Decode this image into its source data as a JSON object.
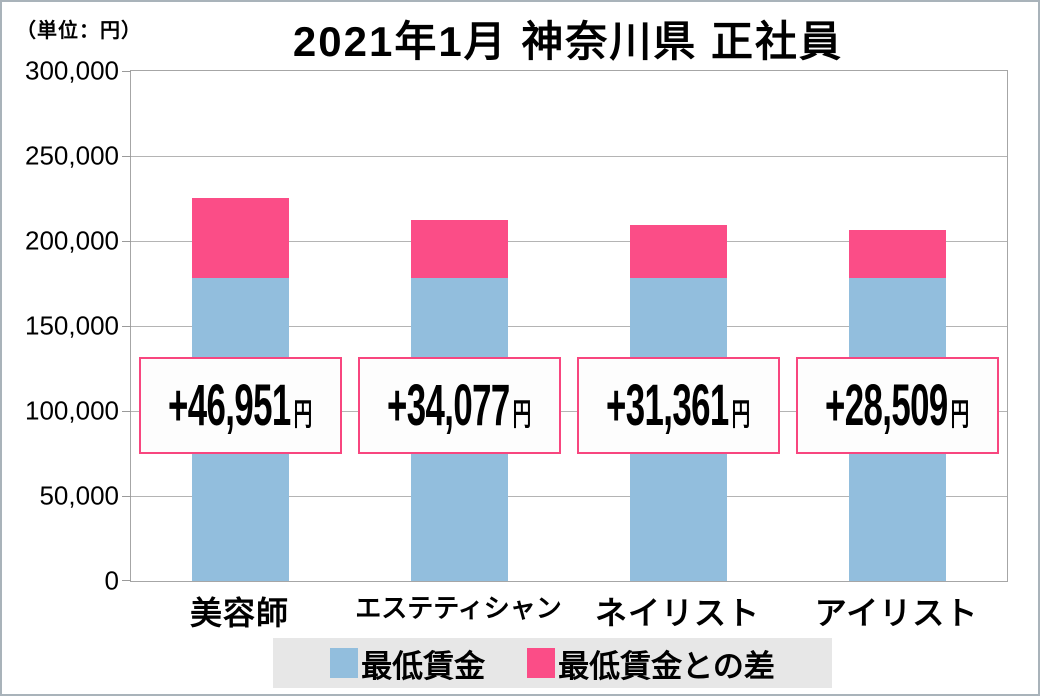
{
  "page": {
    "unit_label": "（単位：円）",
    "title": "2021年1月 神奈川県 正社員"
  },
  "chart_data": {
    "type": "bar",
    "stacked": true,
    "title": "2021年1月 神奈川県 正社員",
    "unit": "円",
    "categories": [
      "美容師",
      "エステティシャン",
      "ネイリスト",
      "アイリスト"
    ],
    "series": [
      {
        "name": "最低賃金",
        "color": "#92bedd",
        "values": [
          178112,
          178112,
          178112,
          178112
        ]
      },
      {
        "name": "最低賃金との差",
        "color": "#fb4d87",
        "values": [
          46951,
          34077,
          31361,
          28509
        ]
      }
    ],
    "totals": [
      225063,
      212189,
      209473,
      206621
    ],
    "bar_annotations": [
      {
        "text": "+46,951",
        "unit": "円"
      },
      {
        "text": "+34,077",
        "unit": "円"
      },
      {
        "text": "+31,361",
        "unit": "円"
      },
      {
        "text": "+28,509",
        "unit": "円"
      }
    ],
    "ylim": [
      0,
      300000
    ],
    "ytick_interval": 50000,
    "ytick_labels": [
      "300,000",
      "250,000",
      "200,000",
      "150,000",
      "100,000",
      "50,000",
      "0"
    ],
    "grid": true,
    "legend_position": "bottom",
    "colors": {
      "grid": "#b4b4b4",
      "axis_border": "#a6a6a6",
      "annotation_border": "#f8467f",
      "annotation_bg": "#fdfdfd",
      "legend_bg": "#e7e7e7"
    }
  }
}
